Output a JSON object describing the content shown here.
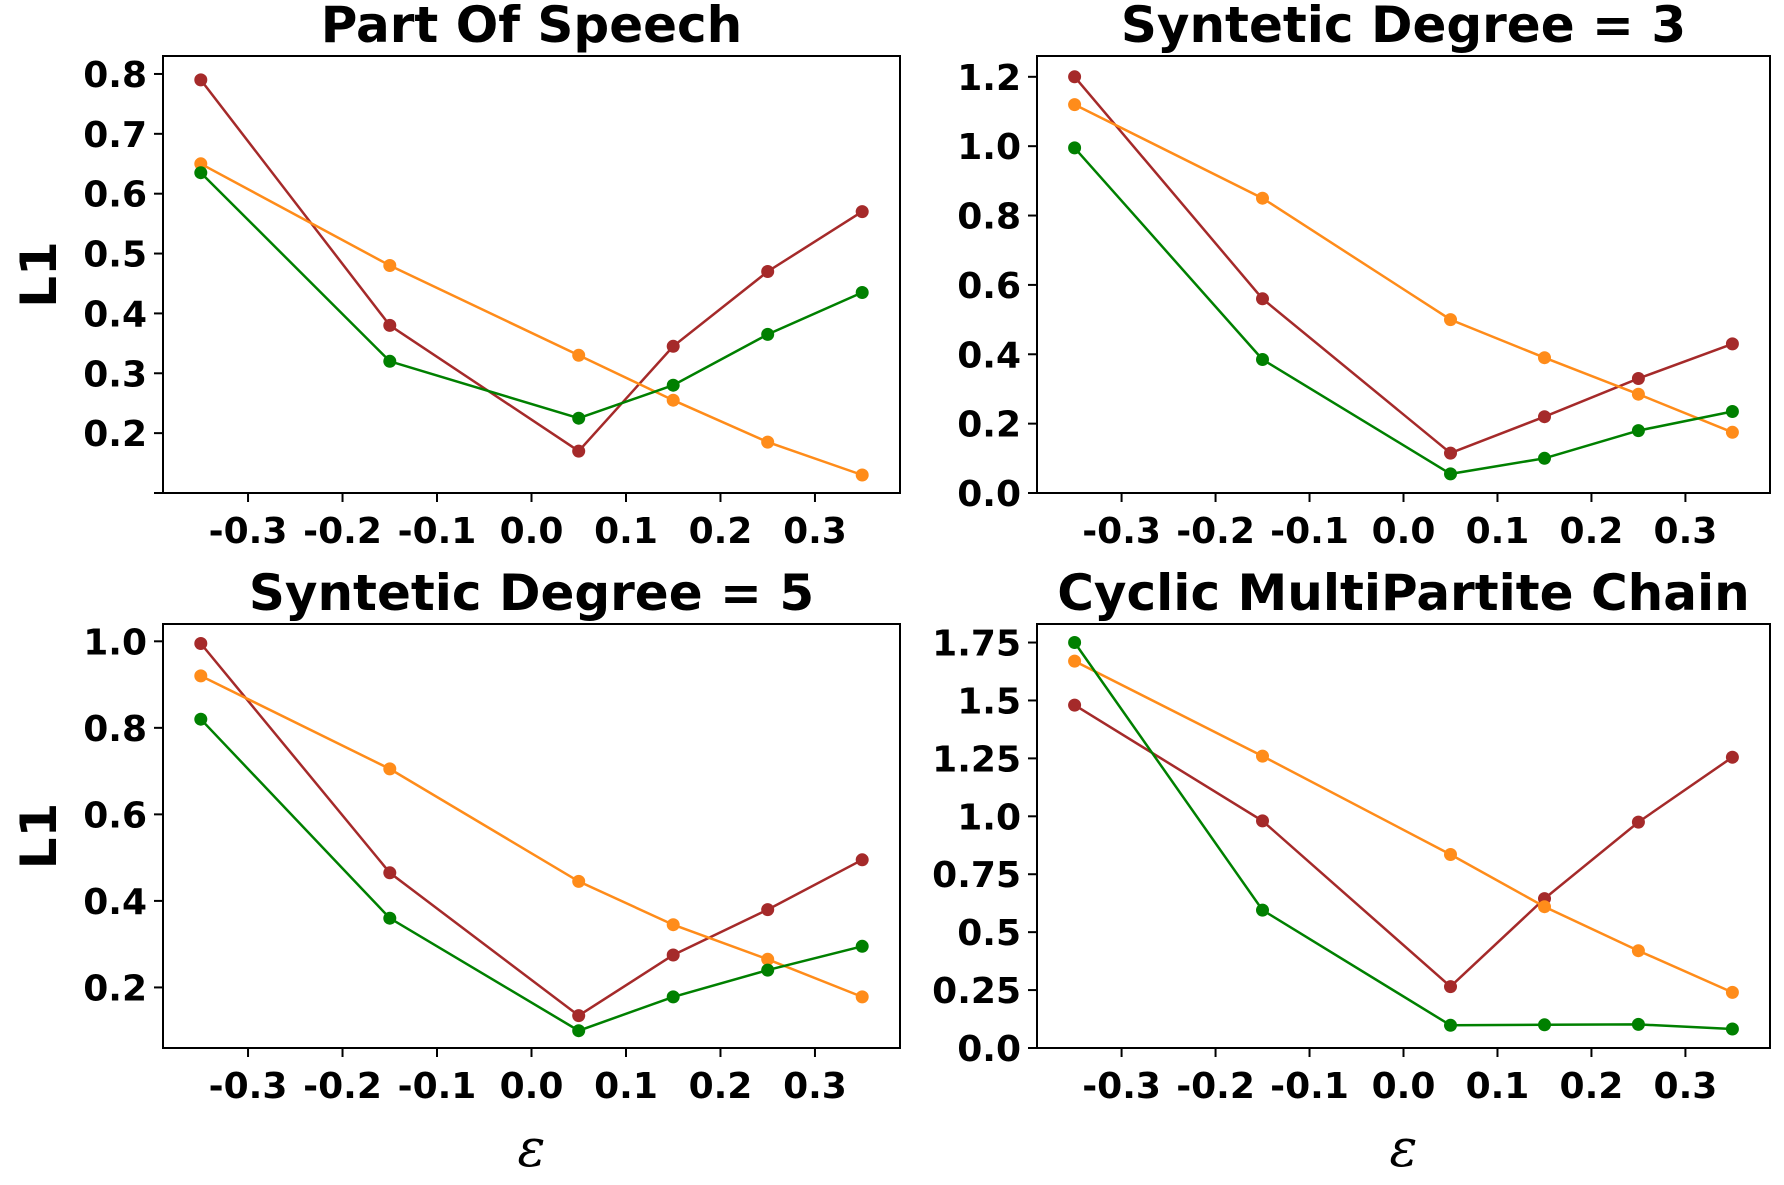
{
  "colors": {
    "red": "#a52a2a",
    "orange": "#ff8c1a",
    "green": "#008000"
  },
  "chart_data": [
    {
      "type": "line",
      "title": "Part Of Speech",
      "ylabel": "L1",
      "xlabel": "",
      "x": [
        -0.35,
        -0.15,
        0.05,
        0.15,
        0.25,
        0.35
      ],
      "xticks": [
        -0.3,
        -0.2,
        -0.1,
        0.0,
        0.1,
        0.2,
        0.3
      ],
      "xtick_labels": [
        "-0.3",
        "-0.2",
        "-0.1",
        "0.0",
        "0.1",
        "0.2",
        "0.3"
      ],
      "xlim": [
        -0.39,
        0.39
      ],
      "yticks": [
        0.1,
        0.2,
        0.3,
        0.4,
        0.5,
        0.6,
        0.7,
        0.8
      ],
      "ytick_labels": [
        "",
        "0.2",
        "0.3",
        "0.4",
        "0.5",
        "0.6",
        "0.7",
        "0.8"
      ],
      "ylim": [
        0.1,
        0.83
      ],
      "grid": false,
      "series": [
        {
          "color": "red",
          "values": [
            0.79,
            0.38,
            null,
            null,
            null,
            null
          ],
          "x_override": [
            -0.35,
            -0.15,
            0.05,
            0.15,
            0.25,
            0.35
          ],
          "y": [
            0.79,
            0.38,
            0.17,
            0.345,
            0.47,
            0.57
          ]
        },
        {
          "color": "orange",
          "y": [
            0.65,
            0.48,
            0.33,
            0.255,
            0.185,
            0.13
          ]
        },
        {
          "color": "green",
          "y": [
            0.635,
            0.32,
            0.225,
            0.28,
            0.365,
            0.435
          ]
        }
      ]
    },
    {
      "type": "line",
      "title": "Syntetic Degree = 3",
      "ylabel": "",
      "xlabel": "",
      "x": [
        -0.35,
        -0.15,
        0.05,
        0.15,
        0.25,
        0.35
      ],
      "xticks": [
        -0.3,
        -0.2,
        -0.1,
        0.0,
        0.1,
        0.2,
        0.3
      ],
      "xtick_labels": [
        "-0.3",
        "-0.2",
        "-0.1",
        "0.0",
        "0.1",
        "0.2",
        "0.3"
      ],
      "xlim": [
        -0.39,
        0.39
      ],
      "yticks": [
        0.0,
        0.2,
        0.4,
        0.6,
        0.8,
        1.0,
        1.2
      ],
      "ytick_labels": [
        "0.0",
        "0.2",
        "0.4",
        "0.6",
        "0.8",
        "1.0",
        "1.2"
      ],
      "ylim": [
        0.0,
        1.26
      ],
      "grid": false,
      "series": [
        {
          "color": "red",
          "y": [
            1.2,
            0.56,
            0.115,
            0.22,
            0.33,
            0.43
          ]
        },
        {
          "color": "orange",
          "y": [
            1.12,
            0.85,
            0.5,
            0.39,
            0.285,
            0.175
          ]
        },
        {
          "color": "green",
          "y": [
            0.995,
            0.385,
            0.055,
            0.1,
            0.18,
            0.235
          ]
        }
      ]
    },
    {
      "type": "line",
      "title": "Syntetic Degree = 5",
      "ylabel": "L1",
      "xlabel": "ε",
      "x": [
        -0.35,
        -0.15,
        0.05,
        0.15,
        0.25,
        0.35
      ],
      "xticks": [
        -0.3,
        -0.2,
        -0.1,
        0.0,
        0.1,
        0.2,
        0.3
      ],
      "xtick_labels": [
        "-0.3",
        "-0.2",
        "-0.1",
        "0.0",
        "0.1",
        "0.2",
        "0.3"
      ],
      "xlim": [
        -0.39,
        0.39
      ],
      "yticks": [
        0.2,
        0.4,
        0.6,
        0.8,
        1.0
      ],
      "ytick_labels": [
        "0.2",
        "0.4",
        "0.6",
        "0.8",
        "1.0"
      ],
      "ylim": [
        0.06,
        1.04
      ],
      "grid": false,
      "series": [
        {
          "color": "red",
          "y": [
            0.995,
            0.465,
            0.135,
            0.275,
            0.38,
            0.495
          ]
        },
        {
          "color": "orange",
          "y": [
            0.92,
            0.705,
            0.445,
            0.345,
            0.265,
            0.178
          ]
        },
        {
          "color": "green",
          "y": [
            0.82,
            0.36,
            0.1,
            0.178,
            0.24,
            0.295
          ]
        }
      ]
    },
    {
      "type": "line",
      "title": "Cyclic MultiPartite Chain",
      "ylabel": "",
      "xlabel": "ε",
      "x": [
        -0.35,
        -0.15,
        0.05,
        0.15,
        0.25,
        0.35
      ],
      "xticks": [
        -0.3,
        -0.2,
        -0.1,
        0.0,
        0.1,
        0.2,
        0.3
      ],
      "xtick_labels": [
        "-0.3",
        "-0.2",
        "-0.1",
        "0.0",
        "0.1",
        "0.2",
        "0.3"
      ],
      "xlim": [
        -0.39,
        0.39
      ],
      "yticks": [
        0.0,
        0.25,
        0.5,
        0.75,
        1.0,
        1.25,
        1.5,
        1.75
      ],
      "ytick_labels": [
        "0.0",
        "0.25",
        "0.5",
        "0.75",
        "1.0",
        "1.25",
        "1.5",
        "1.75"
      ],
      "ylim": [
        0.0,
        1.83
      ],
      "grid": false,
      "series": [
        {
          "color": "red",
          "y": [
            1.48,
            0.98,
            0.265,
            0.645,
            0.975,
            1.255
          ]
        },
        {
          "color": "orange",
          "y": [
            1.67,
            1.26,
            0.835,
            0.61,
            0.42,
            0.24
          ]
        },
        {
          "color": "green",
          "y": [
            1.75,
            0.595,
            0.098,
            0.1,
            0.102,
            0.082
          ]
        }
      ]
    }
  ]
}
